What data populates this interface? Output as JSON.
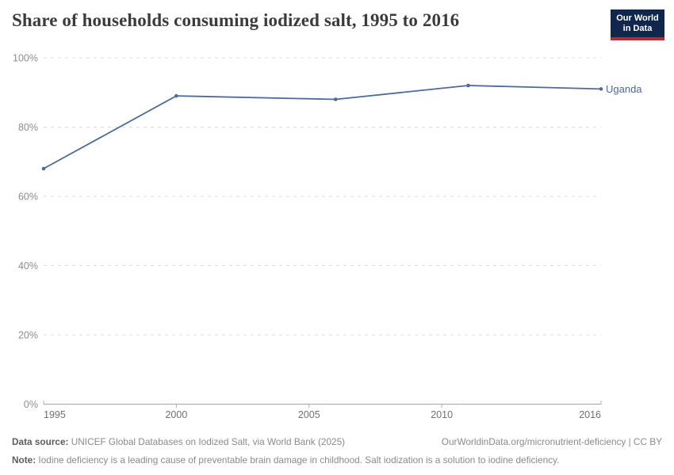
{
  "header": {
    "title": "Share of households consuming iodized salt, 1995 to 2016",
    "logo": {
      "line1": "Our World",
      "line2": "in Data"
    }
  },
  "chart_data": {
    "type": "line",
    "title": "Share of households consuming iodized salt, 1995 to 2016",
    "xlabel": "",
    "ylabel": "",
    "xlim": [
      1995,
      2016
    ],
    "ylim": [
      0,
      100
    ],
    "grid": true,
    "legend_position": "end-of-line",
    "x_ticks": [
      {
        "value": 1995,
        "label": "1995"
      },
      {
        "value": 2000,
        "label": "2000"
      },
      {
        "value": 2005,
        "label": "2005"
      },
      {
        "value": 2010,
        "label": "2010"
      },
      {
        "value": 2016,
        "label": "2016"
      }
    ],
    "y_ticks": [
      {
        "value": 0,
        "label": "0%"
      },
      {
        "value": 20,
        "label": "20%"
      },
      {
        "value": 40,
        "label": "40%"
      },
      {
        "value": 60,
        "label": "60%"
      },
      {
        "value": 80,
        "label": "80%"
      },
      {
        "value": 100,
        "label": "100%"
      }
    ],
    "series": [
      {
        "name": "Uganda",
        "color": "#4C6A9C",
        "points": [
          {
            "x": 1995,
            "y": 68
          },
          {
            "x": 2000,
            "y": 89
          },
          {
            "x": 2006,
            "y": 88
          },
          {
            "x": 2011,
            "y": 92
          },
          {
            "x": 2016,
            "y": 91
          }
        ]
      }
    ],
    "colors": {
      "gridline": "#dcdcdc",
      "axis": "#a3a3a3",
      "tick": "#b0b0b0"
    }
  },
  "footer": {
    "data_source_label": "Data source:",
    "data_source_text": " UNICEF Global Databases on Iodized Salt, via World Bank (2025)",
    "link_text": "OurWorldinData.org/micronutrient-deficiency | CC BY",
    "note_label": "Note:",
    "note_text": " Iodine deficiency is a leading cause of preventable brain damage in childhood. Salt iodization is a solution to iodine deficiency."
  }
}
